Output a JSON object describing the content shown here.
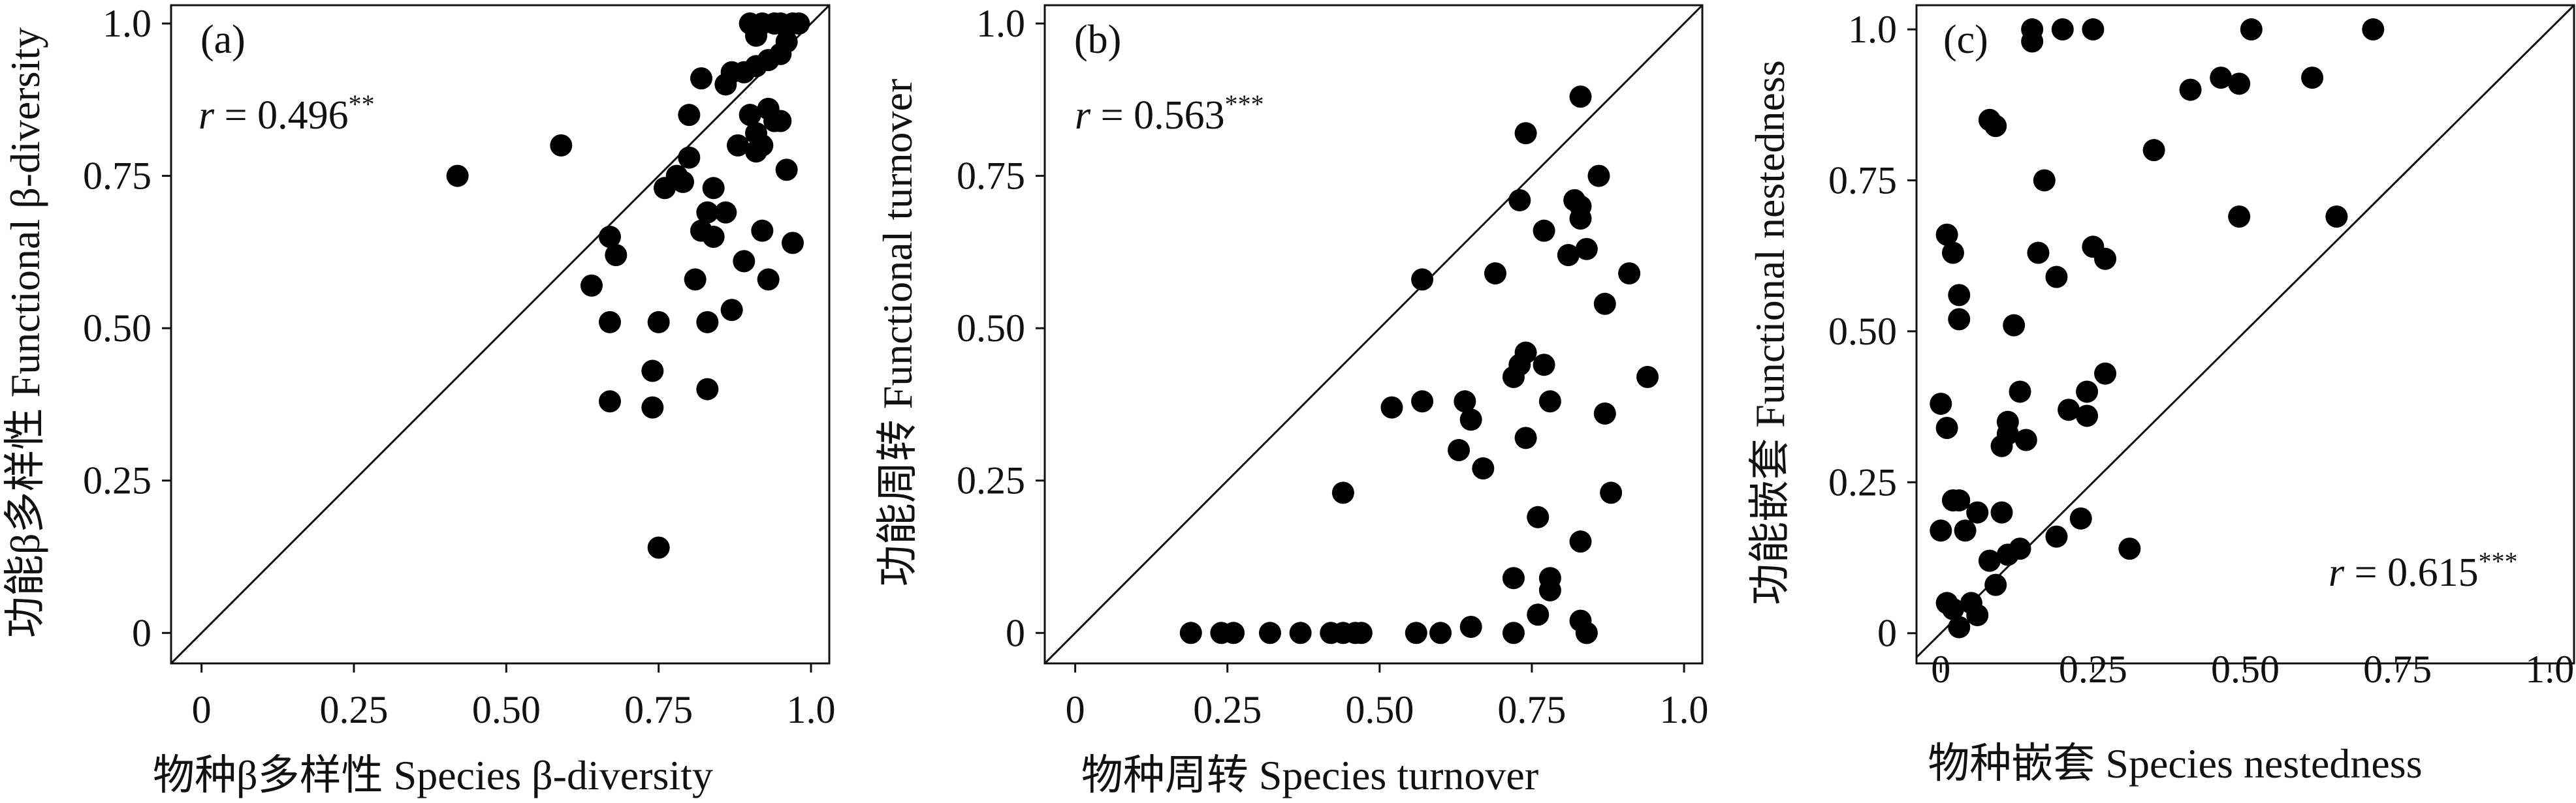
{
  "chart_data": [
    {
      "type": "scatter",
      "panel_label": "(a)",
      "annotation": {
        "r_symbol": "r",
        "r_text": " = 0.496",
        "significance": "**"
      },
      "xlabel": "物种β多样性 Species β-diversity",
      "ylabel": "功能β多样性 Functional β-diversity",
      "xlim": [
        -0.05,
        1.03
      ],
      "ylim": [
        -0.05,
        1.03
      ],
      "xticks": [
        0,
        0.25,
        0.5,
        0.75,
        1.0
      ],
      "xtick_labels": [
        "0",
        "0.25",
        "0.50",
        "0.75",
        "1.0"
      ],
      "yticks": [
        0,
        0.25,
        0.5,
        0.75,
        1.0
      ],
      "ytick_labels": [
        "0",
        "0.25",
        "0.50",
        "0.75",
        "1.0"
      ],
      "reference_line": "1:1",
      "grid": false,
      "points": [
        [
          0.42,
          0.75
        ],
        [
          0.59,
          0.8
        ],
        [
          0.64,
          0.57
        ],
        [
          0.67,
          0.65
        ],
        [
          0.68,
          0.62
        ],
        [
          0.67,
          0.51
        ],
        [
          0.67,
          0.38
        ],
        [
          0.74,
          0.43
        ],
        [
          0.74,
          0.37
        ],
        [
          0.75,
          0.51
        ],
        [
          0.75,
          0.14
        ],
        [
          0.76,
          0.73
        ],
        [
          0.78,
          0.75
        ],
        [
          0.79,
          0.74
        ],
        [
          0.8,
          0.85
        ],
        [
          0.8,
          0.78
        ],
        [
          0.81,
          0.58
        ],
        [
          0.82,
          0.91
        ],
        [
          0.82,
          0.66
        ],
        [
          0.83,
          0.69
        ],
        [
          0.83,
          0.51
        ],
        [
          0.83,
          0.4
        ],
        [
          0.84,
          0.65
        ],
        [
          0.84,
          0.73
        ],
        [
          0.86,
          0.9
        ],
        [
          0.86,
          0.69
        ],
        [
          0.87,
          0.92
        ],
        [
          0.87,
          0.53
        ],
        [
          0.88,
          0.8
        ],
        [
          0.89,
          0.61
        ],
        [
          0.89,
          0.92
        ],
        [
          0.9,
          0.85
        ],
        [
          0.9,
          1.0
        ],
        [
          0.91,
          0.98
        ],
        [
          0.91,
          0.93
        ],
        [
          0.91,
          0.82
        ],
        [
          0.91,
          0.79
        ],
        [
          0.92,
          1.0
        ],
        [
          0.92,
          0.66
        ],
        [
          0.92,
          0.8
        ],
        [
          0.93,
          0.94
        ],
        [
          0.93,
          0.86
        ],
        [
          0.93,
          0.58
        ],
        [
          0.94,
          1.0
        ],
        [
          0.94,
          0.84
        ],
        [
          0.95,
          0.84
        ],
        [
          0.95,
          0.95
        ],
        [
          0.95,
          1.0
        ],
        [
          0.96,
          0.76
        ],
        [
          0.96,
          0.97
        ],
        [
          0.97,
          1.0
        ],
        [
          0.97,
          0.64
        ],
        [
          0.98,
          1.0
        ]
      ]
    },
    {
      "type": "scatter",
      "panel_label": "(b)",
      "annotation": {
        "r_symbol": "r",
        "r_text": " = 0.563",
        "significance": "***"
      },
      "xlabel": "物种周转 Species turnover",
      "ylabel": "功能周转 Functional turnover",
      "xlim": [
        -0.05,
        1.03
      ],
      "ylim": [
        -0.05,
        1.03
      ],
      "xticks": [
        0,
        0.25,
        0.5,
        0.75,
        1.0
      ],
      "xtick_labels": [
        "0",
        "0.25",
        "0.50",
        "0.75",
        "1.0"
      ],
      "yticks": [
        0,
        0.25,
        0.5,
        0.75,
        1.0
      ],
      "ytick_labels": [
        "0",
        "0.25",
        "0.50",
        "0.75",
        "1.0"
      ],
      "reference_line": "1:1",
      "grid": false,
      "points": [
        [
          0.19,
          0.0
        ],
        [
          0.24,
          0.0
        ],
        [
          0.26,
          0.0
        ],
        [
          0.32,
          0.0
        ],
        [
          0.37,
          0.0
        ],
        [
          0.42,
          0.0
        ],
        [
          0.44,
          0.0
        ],
        [
          0.46,
          0.0
        ],
        [
          0.47,
          0.0
        ],
        [
          0.56,
          0.0
        ],
        [
          0.6,
          0.0
        ],
        [
          0.65,
          0.01
        ],
        [
          0.72,
          0.0
        ],
        [
          0.76,
          0.03
        ],
        [
          0.78,
          0.07
        ],
        [
          0.78,
          0.09
        ],
        [
          0.72,
          0.09
        ],
        [
          0.83,
          0.02
        ],
        [
          0.84,
          0.0
        ],
        [
          0.84,
          0.0
        ],
        [
          0.44,
          0.23
        ],
        [
          0.52,
          0.37
        ],
        [
          0.57,
          0.38
        ],
        [
          0.57,
          0.58
        ],
        [
          0.63,
          0.3
        ],
        [
          0.64,
          0.38
        ],
        [
          0.65,
          0.35
        ],
        [
          0.67,
          0.27
        ],
        [
          0.69,
          0.59
        ],
        [
          0.72,
          0.42
        ],
        [
          0.73,
          0.44
        ],
        [
          0.74,
          0.46
        ],
        [
          0.74,
          0.32
        ],
        [
          0.76,
          0.19
        ],
        [
          0.77,
          0.44
        ],
        [
          0.78,
          0.38
        ],
        [
          0.73,
          0.71
        ],
        [
          0.74,
          0.82
        ],
        [
          0.77,
          0.66
        ],
        [
          0.81,
          0.62
        ],
        [
          0.82,
          0.71
        ],
        [
          0.83,
          0.7
        ],
        [
          0.83,
          0.68
        ],
        [
          0.84,
          0.63
        ],
        [
          0.83,
          0.88
        ],
        [
          0.86,
          0.75
        ],
        [
          0.87,
          0.54
        ],
        [
          0.87,
          0.36
        ],
        [
          0.83,
          0.15
        ],
        [
          0.88,
          0.23
        ],
        [
          0.91,
          0.59
        ],
        [
          0.94,
          0.42
        ]
      ]
    },
    {
      "type": "scatter",
      "panel_label": "(c)",
      "annotation": {
        "r_symbol": "r",
        "r_text": " = 0.615",
        "significance": "***"
      },
      "xlabel": "物种嵌套 Species nestedness",
      "ylabel": "功能嵌套 Functional nestedness",
      "xlim": [
        -0.04,
        1.04
      ],
      "ylim": [
        -0.05,
        1.04
      ],
      "xticks": [
        0,
        0.25,
        0.5,
        0.75,
        1.0
      ],
      "xtick_labels": [
        "0",
        "0.25",
        "0.50",
        "0.75",
        "1.0"
      ],
      "yticks": [
        0,
        0.25,
        0.5,
        0.75,
        1.0
      ],
      "ytick_labels": [
        "0",
        "0.25",
        "0.50",
        "0.75",
        "1.0"
      ],
      "reference_line": "1:1",
      "grid": false,
      "points": [
        [
          0.0,
          0.38
        ],
        [
          0.0,
          0.17
        ],
        [
          0.01,
          0.66
        ],
        [
          0.01,
          0.34
        ],
        [
          0.01,
          0.05
        ],
        [
          0.02,
          0.63
        ],
        [
          0.02,
          0.22
        ],
        [
          0.02,
          0.04
        ],
        [
          0.03,
          0.56
        ],
        [
          0.03,
          0.52
        ],
        [
          0.03,
          0.22
        ],
        [
          0.03,
          0.01
        ],
        [
          0.04,
          0.17
        ],
        [
          0.05,
          0.05
        ],
        [
          0.06,
          0.2
        ],
        [
          0.06,
          0.03
        ],
        [
          0.08,
          0.12
        ],
        [
          0.08,
          0.85
        ],
        [
          0.09,
          0.84
        ],
        [
          0.09,
          0.08
        ],
        [
          0.1,
          0.31
        ],
        [
          0.1,
          0.2
        ],
        [
          0.11,
          0.35
        ],
        [
          0.11,
          0.33
        ],
        [
          0.11,
          0.13
        ],
        [
          0.12,
          0.51
        ],
        [
          0.13,
          0.4
        ],
        [
          0.13,
          0.14
        ],
        [
          0.14,
          0.32
        ],
        [
          0.15,
          1.0
        ],
        [
          0.15,
          0.98
        ],
        [
          0.16,
          0.63
        ],
        [
          0.17,
          0.75
        ],
        [
          0.19,
          0.59
        ],
        [
          0.19,
          0.16
        ],
        [
          0.2,
          1.0
        ],
        [
          0.21,
          0.37
        ],
        [
          0.23,
          0.19
        ],
        [
          0.24,
          0.36
        ],
        [
          0.24,
          0.4
        ],
        [
          0.25,
          0.64
        ],
        [
          0.25,
          1.0
        ],
        [
          0.27,
          0.62
        ],
        [
          0.27,
          0.43
        ],
        [
          0.31,
          0.14
        ],
        [
          0.35,
          0.8
        ],
        [
          0.41,
          0.9
        ],
        [
          0.46,
          0.92
        ],
        [
          0.49,
          0.91
        ],
        [
          0.49,
          0.69
        ],
        [
          0.51,
          1.0
        ],
        [
          0.61,
          0.92
        ],
        [
          0.65,
          0.69
        ],
        [
          0.71,
          1.0
        ]
      ]
    }
  ]
}
